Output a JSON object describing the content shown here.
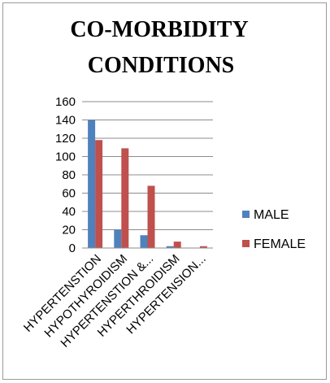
{
  "chart_data": {
    "type": "bar",
    "title_lines": [
      "CO-MORBIDITY",
      "CONDITIONS"
    ],
    "categories": [
      "HYPERTENSTION",
      "HYPOTHYROIDISM",
      "HYPERTENSTION &...",
      "HYPERTHROIDISM",
      "HYPERTENSION..."
    ],
    "series": [
      {
        "name": "MALE",
        "color": "#4f81bd",
        "values": [
          140,
          20,
          14,
          2,
          0
        ]
      },
      {
        "name": "FEMALE",
        "color": "#c0504d",
        "values": [
          118,
          109,
          68,
          7,
          2
        ]
      }
    ],
    "ylim": [
      0,
      160
    ],
    "yticks": [
      0,
      20,
      40,
      60,
      80,
      100,
      120,
      140,
      160
    ],
    "grid": true,
    "legend_position": "right"
  }
}
